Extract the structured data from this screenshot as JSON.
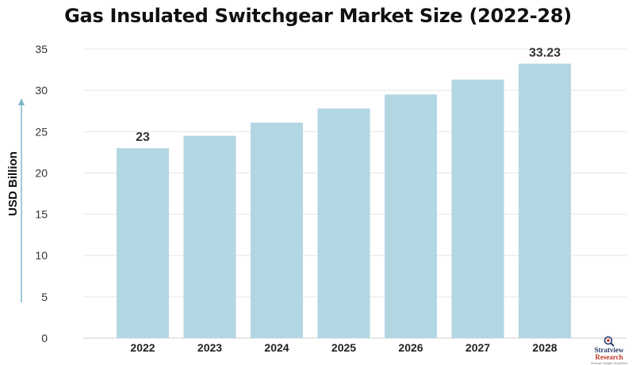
{
  "chart_data": {
    "type": "bar",
    "title": "Gas Insulated Switchgear Market Size (2022-28)",
    "ylabel": "USD Billion",
    "xlabel": "",
    "categories": [
      "2022",
      "2023",
      "2024",
      "2025",
      "2026",
      "2027",
      "2028"
    ],
    "values": [
      23,
      24.5,
      26.1,
      27.8,
      29.5,
      31.3,
      33.23
    ],
    "data_labels": [
      {
        "category": "2022",
        "text": "23"
      },
      {
        "category": "2028",
        "text": "33.23"
      }
    ],
    "ylim": [
      0,
      35
    ],
    "yticks": [
      0,
      5,
      10,
      15,
      20,
      25,
      30,
      35
    ],
    "grid": true,
    "bar_color": "#b3d6e3",
    "axis_arrow_color": "#7fb8cc"
  },
  "brand": {
    "name": "Stratview",
    "sub": "Research",
    "tagline": "Strategic Insights Simplified",
    "logo_icon": "magnifier-target-icon"
  }
}
